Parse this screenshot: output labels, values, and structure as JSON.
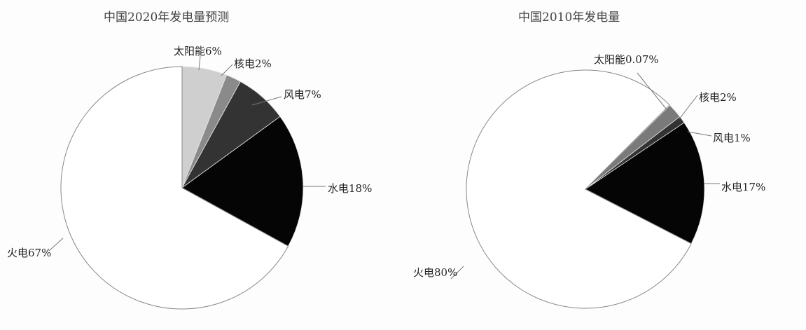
{
  "chart_data": [
    {
      "type": "pie",
      "title": "中国2020年发电量预测",
      "start_angle_deg": 0,
      "direction": "clockwise",
      "slices": [
        {
          "label": "太阳能6%",
          "name": "太阳能",
          "value": 6,
          "color": "#cfcfcf"
        },
        {
          "label": "核电2%",
          "name": "核电",
          "value": 2,
          "color": "#8a8a8a"
        },
        {
          "label": "风电7%",
          "name": "风电",
          "value": 7,
          "color": "#333333"
        },
        {
          "label": "水电18%",
          "name": "水电",
          "value": 18,
          "color": "#050505"
        },
        {
          "label": "火电67%",
          "name": "火电",
          "value": 67,
          "color": "#ffffff"
        }
      ]
    },
    {
      "type": "pie",
      "title": "中国2010年发电量",
      "start_angle_deg": 45,
      "direction": "clockwise",
      "slices": [
        {
          "label": "太阳能0.07%",
          "name": "太阳能",
          "value": 0.07,
          "color": "#cfcfcf"
        },
        {
          "label": "核电2%",
          "name": "核电",
          "value": 2,
          "color": "#7a7a7a"
        },
        {
          "label": "风电1%",
          "name": "风电",
          "value": 1,
          "color": "#333333"
        },
        {
          "label": "水电17%",
          "name": "水电",
          "value": 17,
          "color": "#050505"
        },
        {
          "label": "火电80%",
          "name": "火电",
          "value": 80,
          "color": "#ffffff"
        }
      ]
    }
  ]
}
